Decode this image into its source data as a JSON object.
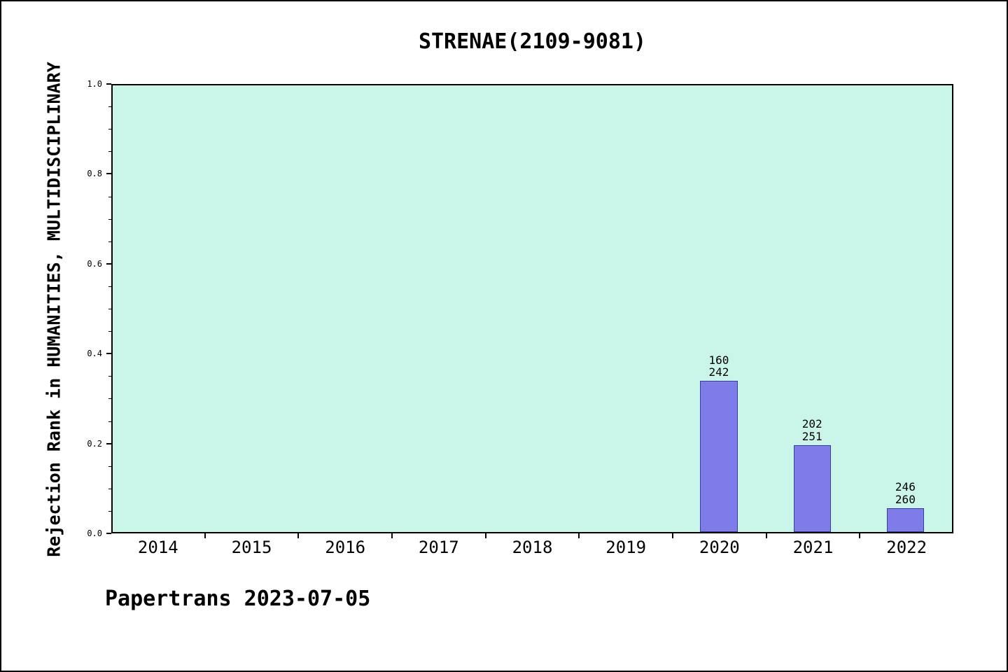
{
  "figure": {
    "footer": "Papertrans 2023-07-05"
  },
  "chart_data": {
    "type": "bar",
    "title": "STRENAE(2109-9081)",
    "xlabel": "",
    "ylabel": "Rejection Rank in HUMANITIES, MULTIDISCIPLINARY",
    "categories": [
      "2014",
      "2015",
      "2016",
      "2017",
      "2018",
      "2019",
      "2020",
      "2021",
      "2022"
    ],
    "values": [
      null,
      null,
      null,
      null,
      null,
      null,
      0.339,
      0.195,
      0.054
    ],
    "bar_labels": [
      null,
      null,
      null,
      null,
      null,
      null,
      [
        "160",
        "242"
      ],
      [
        "202",
        "251"
      ],
      [
        "246",
        "260"
      ]
    ],
    "ylim": [
      0,
      1
    ],
    "yticks": [
      "0.0",
      "0.2",
      "0.4",
      "0.6",
      "0.8",
      "1.0"
    ],
    "minor_ytick_step": 0.05,
    "grid": false,
    "legend": null,
    "colors": {
      "plot_bg": "#c9f6e9",
      "bar_fill": "#7d7ce8",
      "bar_edge": "#3c3c99",
      "axis": "#000000",
      "text": "#000000"
    }
  }
}
